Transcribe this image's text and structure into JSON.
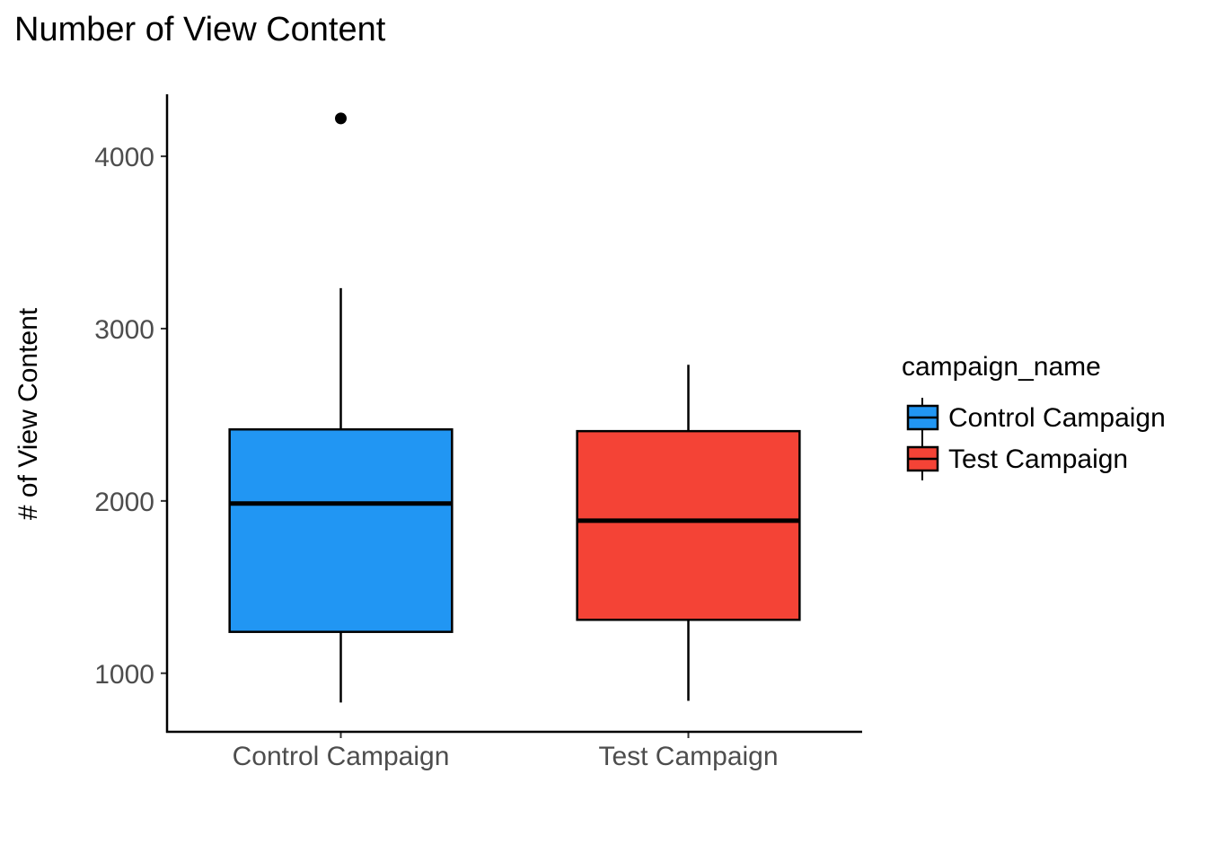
{
  "chart_data": {
    "type": "boxplot",
    "title": "Number of View Content",
    "xlabel": "",
    "ylabel": "# of View Content",
    "categories": [
      "Control Campaign",
      "Test Campaign"
    ],
    "y_ticks": [
      1000,
      2000,
      3000,
      4000
    ],
    "ylim": [
      660,
      4360
    ],
    "grid": false,
    "boxes": [
      {
        "name": "Control Campaign",
        "min": 830,
        "q1": 1240,
        "median": 1985,
        "q3": 2415,
        "max": 3235,
        "outliers": [
          4220
        ],
        "color": "#2196F3"
      },
      {
        "name": "Test Campaign",
        "min": 840,
        "q1": 1310,
        "median": 1885,
        "q3": 2405,
        "max": 2790,
        "outliers": [],
        "color": "#F44336"
      }
    ],
    "legend": {
      "title": "campaign_name",
      "position": "right",
      "entries": [
        {
          "label": "Control Campaign",
          "color": "#2196F3"
        },
        {
          "label": "Test Campaign",
          "color": "#F44336"
        }
      ]
    }
  }
}
